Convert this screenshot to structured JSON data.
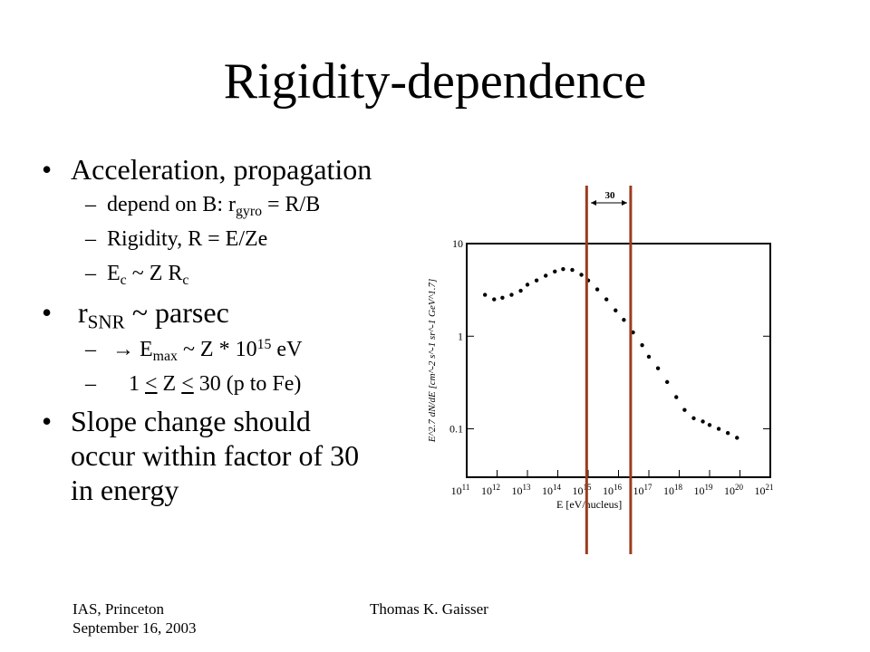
{
  "title": "Rigidity-dependence",
  "bullets": [
    {
      "text": "Acceleration, propagation",
      "subs": [
        {
          "pre": " depend on B: r",
          "sub": "gyro",
          "post": " = R/B"
        },
        {
          "pre": "Rigidity, R = E/Ze"
        },
        {
          "pre": "E",
          "sub": "c",
          "mid": " ~ Z R",
          "sub2": "c"
        }
      ]
    },
    {
      "pre": "r",
      "sub": "SNR",
      "post": " ~ parsec",
      "subs": [
        {
          "arrow": "→",
          "pre": " E",
          "sub": "max",
          "mid": " ~ Z * 10",
          "sup": "15",
          "post": " eV"
        },
        {
          "pre": "1 ",
          "u1": "<",
          "mid": " Z ",
          "u2": "<",
          "post": " 30 (p to Fe)"
        }
      ]
    },
    {
      "lines": [
        "Slope change should",
        "occur within factor of 30",
        "in energy"
      ]
    }
  ],
  "footer": {
    "venue": "IAS, Princeton",
    "date": "September 16, 2003",
    "author": "Thomas K. Gaisser"
  },
  "figure": {
    "y_ticks": [
      "10",
      "1",
      "0.1"
    ],
    "x_base": "10",
    "x_exponents": [
      "11",
      "12",
      "13",
      "14",
      "15",
      "16",
      "17",
      "18",
      "19",
      "20",
      "21"
    ],
    "x_label": "E  [eV/nucleus]",
    "y_label": "E^2.7 dN/dE  [cm^-2 s^-1 sr^-1 GeV^1.7]",
    "annotation": "30",
    "line_color": "#9b3d1e"
  },
  "chart_data": {
    "type": "scatter",
    "xscale": "log",
    "yscale": "log",
    "xlim": [
      100000000000.0,
      1e+21
    ],
    "ylim": [
      0.03,
      10
    ],
    "ytick_labels": [
      "10",
      "1",
      "0.1"
    ],
    "series": [
      {
        "x": [
          400000000000.0,
          800000000000.0,
          1500000000000.0,
          3000000000000.0,
          6000000000000.0,
          10000000000000.0,
          20000000000000.0,
          40000000000000.0,
          80000000000000.0,
          150000000000000.0,
          300000000000000.0,
          600000000000000.0,
          1000000000000000.0,
          2000000000000000.0,
          4000000000000000.0,
          8000000000000000.0,
          1.5e+16,
          3e+16,
          6e+16,
          1e+17,
          2e+17,
          4e+17,
          8e+17,
          1.5e+18,
          3e+18,
          6e+18,
          1e+19,
          2e+19,
          4e+19,
          8e+19
        ],
        "y": [
          2.8,
          2.5,
          2.6,
          2.8,
          3.1,
          3.6,
          4.0,
          4.5,
          5.0,
          5.3,
          5.2,
          4.6,
          4.0,
          3.2,
          2.5,
          1.9,
          1.5,
          1.1,
          0.8,
          0.6,
          0.45,
          0.32,
          0.22,
          0.16,
          0.13,
          0.12,
          0.11,
          0.1,
          0.09,
          0.08
        ]
      }
    ],
    "vertical_markers_log10E": [
      14.95,
      16.4
    ]
  }
}
